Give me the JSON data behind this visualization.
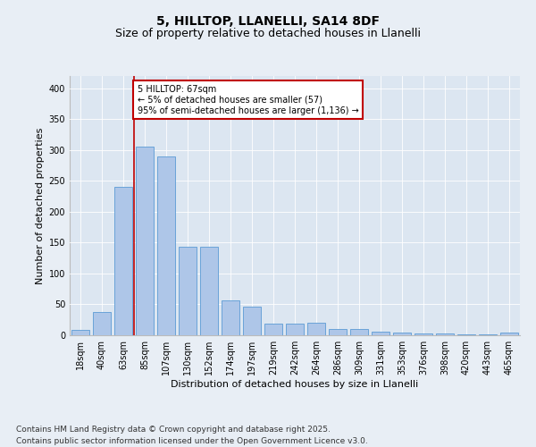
{
  "title1": "5, HILLTOP, LLANELLI, SA14 8DF",
  "title2": "Size of property relative to detached houses in Llanelli",
  "xlabel": "Distribution of detached houses by size in Llanelli",
  "ylabel": "Number of detached properties",
  "categories": [
    "18sqm",
    "40sqm",
    "63sqm",
    "85sqm",
    "107sqm",
    "130sqm",
    "152sqm",
    "174sqm",
    "197sqm",
    "219sqm",
    "242sqm",
    "264sqm",
    "286sqm",
    "309sqm",
    "331sqm",
    "353sqm",
    "376sqm",
    "398sqm",
    "420sqm",
    "443sqm",
    "465sqm"
  ],
  "values": [
    8,
    38,
    240,
    305,
    290,
    143,
    143,
    57,
    46,
    19,
    19,
    20,
    10,
    10,
    6,
    4,
    3,
    3,
    1,
    2,
    4
  ],
  "bar_color": "#aec6e8",
  "bar_edge_color": "#5b9bd5",
  "vline_color": "#c00000",
  "annotation_text": "5 HILLTOP: 67sqm\n← 5% of detached houses are smaller (57)\n95% of semi-detached houses are larger (1,136) →",
  "annotation_box_color": "#ffffff",
  "annotation_box_edge": "#c00000",
  "ylim": [
    0,
    420
  ],
  "yticks": [
    0,
    50,
    100,
    150,
    200,
    250,
    300,
    350,
    400
  ],
  "background_color": "#e8eef5",
  "plot_bg_color": "#dce6f1",
  "footer": "Contains HM Land Registry data © Crown copyright and database right 2025.\nContains public sector information licensed under the Open Government Licence v3.0.",
  "title_fontsize": 10,
  "subtitle_fontsize": 9,
  "footer_fontsize": 6.5,
  "axis_label_fontsize": 8,
  "tick_fontsize": 7,
  "annotation_fontsize": 7
}
